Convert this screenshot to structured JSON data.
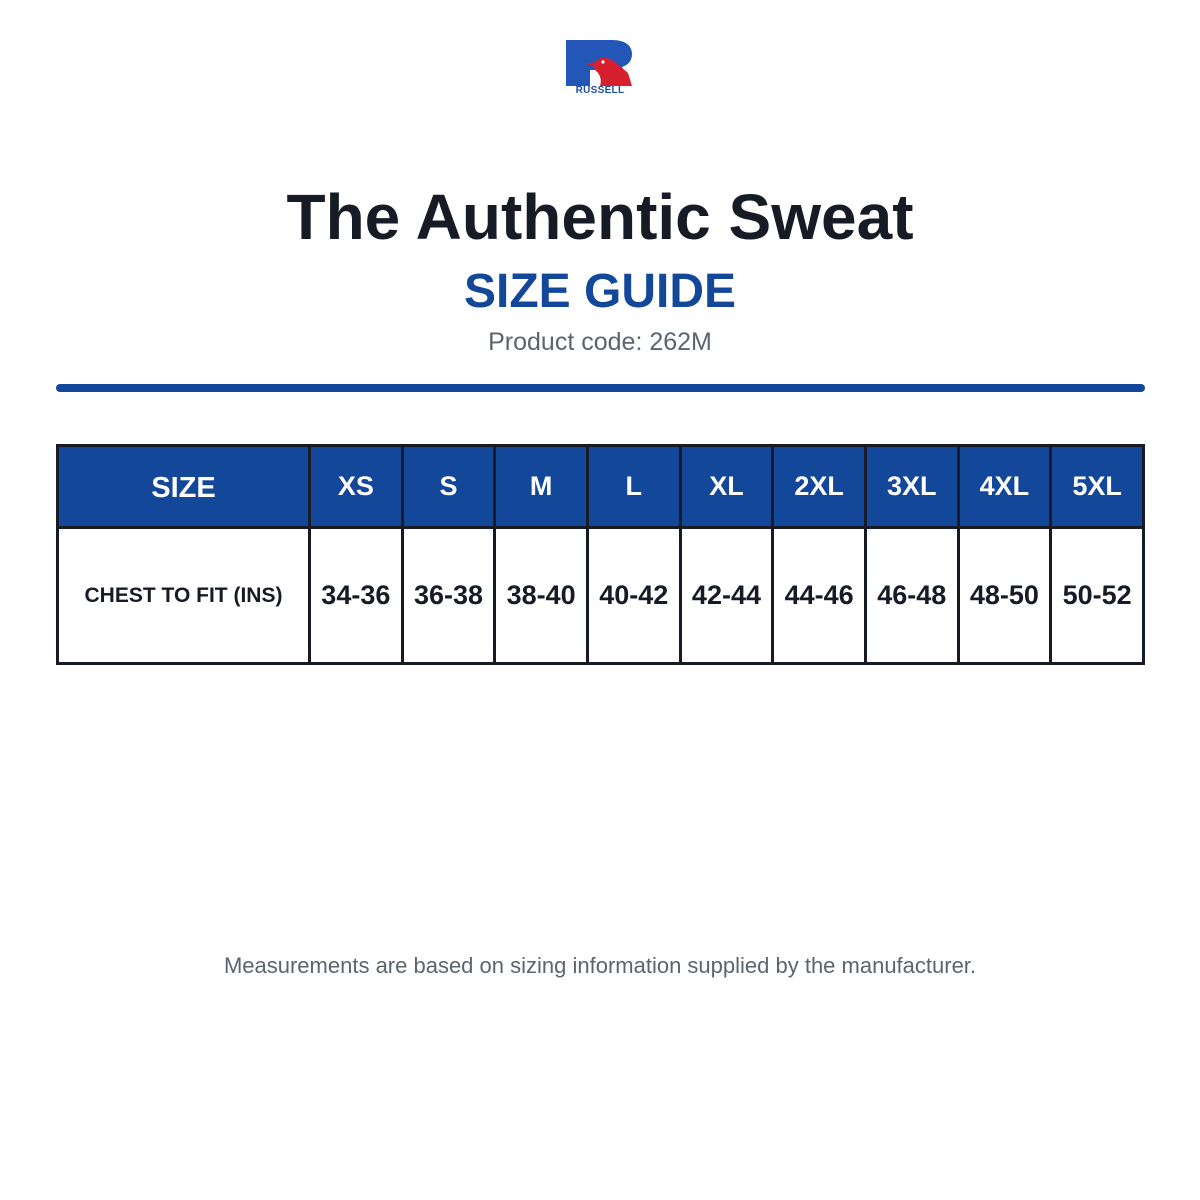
{
  "brand": {
    "name": "RUSSELL",
    "logo_blue": "#2257b8",
    "logo_red": "#d6202f"
  },
  "header": {
    "title": "The Authentic Sweat",
    "subtitle": "SIZE GUIDE",
    "product_code": "Product code: 262M"
  },
  "colors": {
    "primary_blue": "#13479a",
    "text_dark": "#161b26",
    "text_gray": "#5c6470"
  },
  "size_table": {
    "header_label": "SIZE",
    "sizes": [
      "XS",
      "S",
      "M",
      "L",
      "XL",
      "2XL",
      "3XL",
      "4XL",
      "5XL"
    ],
    "row_label": "CHEST TO FIT (INS)",
    "chest": [
      "34-36",
      "36-38",
      "38-40",
      "40-42",
      "42-44",
      "44-46",
      "46-48",
      "48-50",
      "50-52"
    ]
  },
  "footer": {
    "note": "Measurements are based on sizing information supplied by the manufacturer."
  }
}
